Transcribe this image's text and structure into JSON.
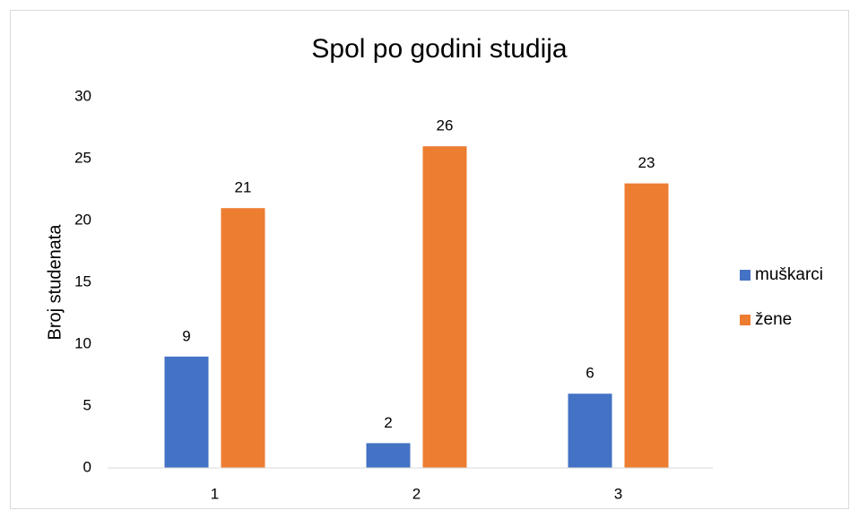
{
  "chart_data": {
    "type": "bar",
    "title": "Spol po godini studija",
    "y_label": "Broj studenata",
    "categories": [
      "1",
      "2",
      "3"
    ],
    "series": [
      {
        "name": "muškarci",
        "color": "#4472c4",
        "values": [
          9,
          2,
          6
        ]
      },
      {
        "name": "žene",
        "color": "#ed7d31",
        "values": [
          21,
          26,
          23
        ]
      }
    ],
    "ylim": [
      0,
      30
    ],
    "yticks": [
      0,
      5,
      10,
      15,
      20,
      25,
      30
    ],
    "grid": false,
    "legend": "right"
  }
}
